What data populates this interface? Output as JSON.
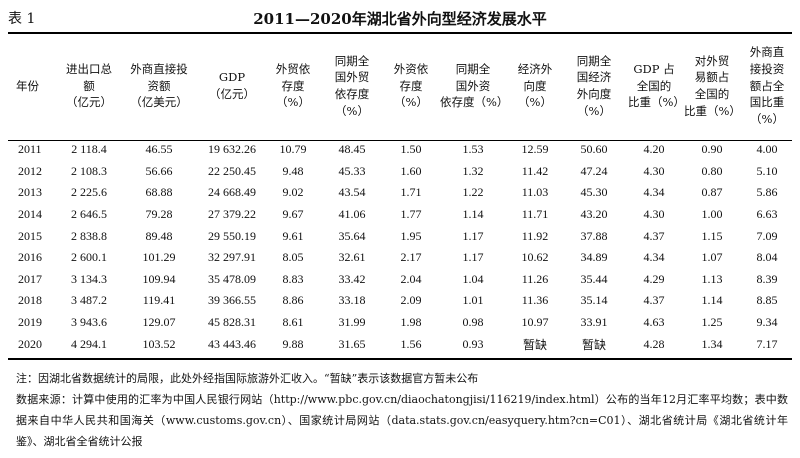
{
  "header": {
    "table_label": "表 1",
    "title": "2011—2020年湖北省外向型经济发展水平"
  },
  "table": {
    "columns": [
      "年份",
      "进出口总\n额\n（亿元）",
      "外商直接投\n资额\n（亿美元）",
      "GDP\n（亿元）",
      "外贸依\n存度\n（%）",
      "同期全\n国外贸\n依存度\n（%）",
      "外资依\n存度\n（%）",
      "同期全\n国外资\n依存度（%）",
      "经济外\n向度\n（%）",
      "同期全\n国经济\n外向度\n（%）",
      "GDP 占\n全国的\n比重（%）",
      "对外贸\n易额占\n全国的\n比重（%）",
      "外商直\n接投资\n额占全\n国比重\n（%）"
    ],
    "rows": [
      [
        "2011",
        "2 118.4",
        "46.55",
        "19 632.26",
        "10.79",
        "48.45",
        "1.50",
        "1.53",
        "12.59",
        "50.60",
        "4.20",
        "0.90",
        "4.00"
      ],
      [
        "2012",
        "2 108.3",
        "56.66",
        "22 250.45",
        "9.48",
        "45.33",
        "1.60",
        "1.32",
        "11.42",
        "47.24",
        "4.30",
        "0.80",
        "5.10"
      ],
      [
        "2013",
        "2 225.6",
        "68.88",
        "24 668.49",
        "9.02",
        "43.54",
        "1.71",
        "1.22",
        "11.03",
        "45.30",
        "4.34",
        "0.87",
        "5.86"
      ],
      [
        "2014",
        "2 646.5",
        "79.28",
        "27 379.22",
        "9.67",
        "41.06",
        "1.77",
        "1.14",
        "11.71",
        "43.20",
        "4.30",
        "1.00",
        "6.63"
      ],
      [
        "2015",
        "2 838.8",
        "89.48",
        "29 550.19",
        "9.61",
        "35.64",
        "1.95",
        "1.17",
        "11.92",
        "37.88",
        "4.37",
        "1.15",
        "7.09"
      ],
      [
        "2016",
        "2 600.1",
        "101.29",
        "32 297.91",
        "8.05",
        "32.61",
        "2.17",
        "1.17",
        "10.62",
        "34.89",
        "4.34",
        "1.07",
        "8.04"
      ],
      [
        "2017",
        "3 134.3",
        "109.94",
        "35 478.09",
        "8.83",
        "33.42",
        "2.04",
        "1.04",
        "11.26",
        "35.44",
        "4.29",
        "1.13",
        "8.39"
      ],
      [
        "2018",
        "3 487.2",
        "119.41",
        "39 366.55",
        "8.86",
        "33.18",
        "2.09",
        "1.01",
        "11.36",
        "35.14",
        "4.37",
        "1.14",
        "8.85"
      ],
      [
        "2019",
        "3 943.6",
        "129.07",
        "45 828.31",
        "8.61",
        "31.99",
        "1.98",
        "0.98",
        "10.97",
        "33.91",
        "4.63",
        "1.25",
        "9.34"
      ],
      [
        "2020",
        "4 294.1",
        "103.52",
        "43 443.46",
        "9.88",
        "31.65",
        "1.56",
        "0.93",
        "暂缺",
        "暂缺",
        "4.28",
        "1.34",
        "7.17"
      ]
    ]
  },
  "notes": {
    "note": "注：因湖北省数据统计的局限，此处外经指国际旅游外汇收入。“暂缺”表示该数据官方暂未公布",
    "source": "数据来源：计算中使用的汇率为中国人民银行网站（http://www.pbc.gov.cn/diaochatongjisi/116219/index.html）公布的当年12月汇率平均数；表中数据来自中华人民共和国海关（www.customs.gov.cn）、国家统计局网站（data.stats.gov.cn/easyquery.htm?cn=C01）、湖北省统计局《湖北省统计年鉴》、湖北省全省统计公报"
  }
}
